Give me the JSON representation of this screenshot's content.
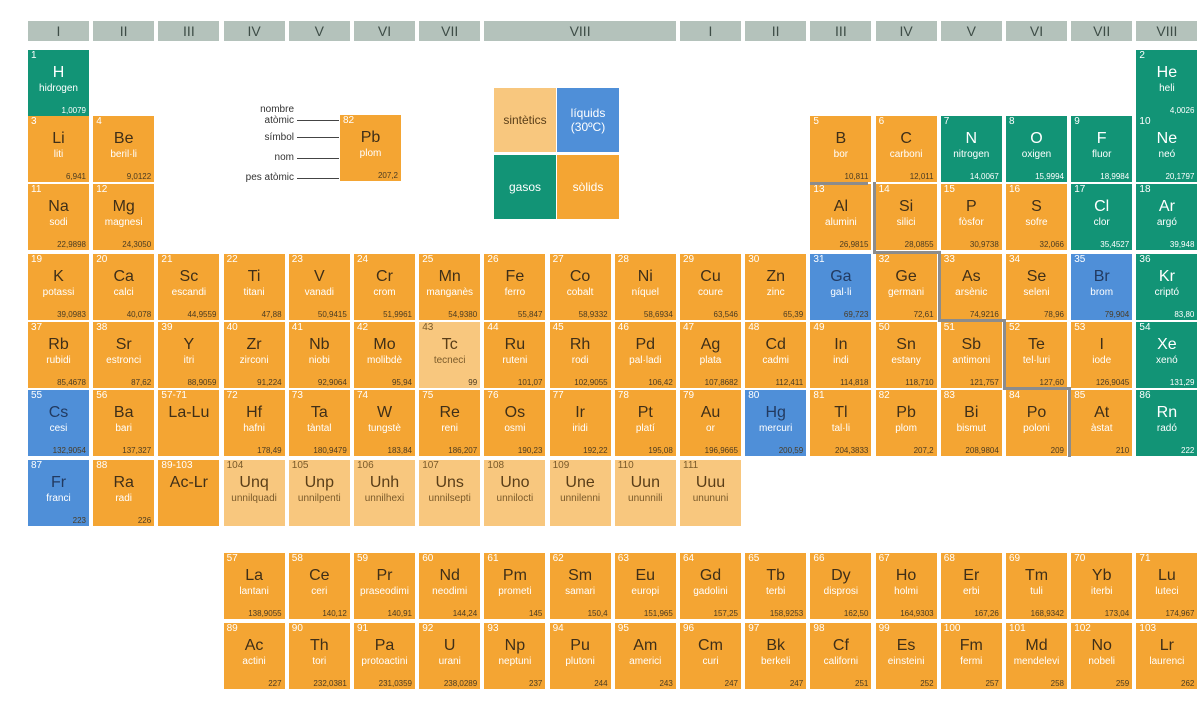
{
  "colors": {
    "solid": "#f4a533",
    "synthetic": "#f8c77e",
    "liquid": "#4f8fd8",
    "gas": "#129476",
    "header": "#b4c2bb"
  },
  "groups": [
    "I",
    "II",
    "III",
    "IV",
    "V",
    "VI",
    "VII",
    "VIII",
    "I",
    "II",
    "III",
    "IV",
    "V",
    "VI",
    "VII",
    "VIII"
  ],
  "legend": {
    "example": {
      "num": "82",
      "sym": "Pb",
      "name": "plom",
      "mass": "207,2"
    },
    "labels": [
      "nombre atòmic",
      "símbol",
      "nom",
      "pes atòmic"
    ],
    "states": [
      {
        "label": "sintètics",
        "color": "#f8c77e"
      },
      {
        "label": "líquids (30ºC)",
        "color": "#4f8fd8"
      },
      {
        "label": "gasos",
        "color": "#129476"
      },
      {
        "label": "sòlids",
        "color": "#f4a533"
      }
    ]
  },
  "elements": [
    {
      "num": "1",
      "sym": "H",
      "name": "hidrogen",
      "mass": "1,0079",
      "row": 1,
      "col": 1,
      "state": "gas"
    },
    {
      "num": "2",
      "sym": "He",
      "name": "heli",
      "mass": "4,0026",
      "row": 1,
      "col": 18,
      "state": "gas"
    },
    {
      "num": "3",
      "sym": "Li",
      "name": "liti",
      "mass": "6,941",
      "row": 2,
      "col": 1,
      "state": "solid"
    },
    {
      "num": "4",
      "sym": "Be",
      "name": "beril·li",
      "mass": "9,0122",
      "row": 2,
      "col": 2,
      "state": "solid"
    },
    {
      "num": "5",
      "sym": "B",
      "name": "bor",
      "mass": "10,811",
      "row": 2,
      "col": 13,
      "state": "solid"
    },
    {
      "num": "6",
      "sym": "C",
      "name": "carboni",
      "mass": "12,011",
      "row": 2,
      "col": 14,
      "state": "solid"
    },
    {
      "num": "7",
      "sym": "N",
      "name": "nitrogen",
      "mass": "14,0067",
      "row": 2,
      "col": 15,
      "state": "gas"
    },
    {
      "num": "8",
      "sym": "O",
      "name": "oxigen",
      "mass": "15,9994",
      "row": 2,
      "col": 16,
      "state": "gas"
    },
    {
      "num": "9",
      "sym": "F",
      "name": "fluor",
      "mass": "18,9984",
      "row": 2,
      "col": 17,
      "state": "gas"
    },
    {
      "num": "10",
      "sym": "Ne",
      "name": "neó",
      "mass": "20,1797",
      "row": 2,
      "col": 18,
      "state": "gas"
    },
    {
      "num": "11",
      "sym": "Na",
      "name": "sodi",
      "mass": "22,9898",
      "row": 3,
      "col": 1,
      "state": "solid"
    },
    {
      "num": "12",
      "sym": "Mg",
      "name": "magnesi",
      "mass": "24,3050",
      "row": 3,
      "col": 2,
      "state": "solid"
    },
    {
      "num": "13",
      "sym": "Al",
      "name": "alumini",
      "mass": "26,9815",
      "row": 3,
      "col": 13,
      "state": "solid"
    },
    {
      "num": "14",
      "sym": "Si",
      "name": "silici",
      "mass": "28,0855",
      "row": 3,
      "col": 14,
      "state": "solid"
    },
    {
      "num": "15",
      "sym": "P",
      "name": "fòsfor",
      "mass": "30,9738",
      "row": 3,
      "col": 15,
      "state": "solid"
    },
    {
      "num": "16",
      "sym": "S",
      "name": "sofre",
      "mass": "32,066",
      "row": 3,
      "col": 16,
      "state": "solid"
    },
    {
      "num": "17",
      "sym": "Cl",
      "name": "clor",
      "mass": "35,4527",
      "row": 3,
      "col": 17,
      "state": "gas"
    },
    {
      "num": "18",
      "sym": "Ar",
      "name": "argó",
      "mass": "39,948",
      "row": 3,
      "col": 18,
      "state": "gas"
    },
    {
      "num": "19",
      "sym": "K",
      "name": "potassi",
      "mass": "39,0983",
      "row": 4,
      "col": 1,
      "state": "solid"
    },
    {
      "num": "20",
      "sym": "Ca",
      "name": "calci",
      "mass": "40,078",
      "row": 4,
      "col": 2,
      "state": "solid"
    },
    {
      "num": "21",
      "sym": "Sc",
      "name": "escandi",
      "mass": "44,9559",
      "row": 4,
      "col": 3,
      "state": "solid"
    },
    {
      "num": "22",
      "sym": "Ti",
      "name": "titani",
      "mass": "47,88",
      "row": 4,
      "col": 4,
      "state": "solid"
    },
    {
      "num": "23",
      "sym": "V",
      "name": "vanadi",
      "mass": "50,9415",
      "row": 4,
      "col": 5,
      "state": "solid"
    },
    {
      "num": "24",
      "sym": "Cr",
      "name": "crom",
      "mass": "51,9961",
      "row": 4,
      "col": 6,
      "state": "solid"
    },
    {
      "num": "25",
      "sym": "Mn",
      "name": "manganès",
      "mass": "54,9380",
      "row": 4,
      "col": 7,
      "state": "solid"
    },
    {
      "num": "26",
      "sym": "Fe",
      "name": "ferro",
      "mass": "55,847",
      "row": 4,
      "col": 8,
      "state": "solid"
    },
    {
      "num": "27",
      "sym": "Co",
      "name": "cobalt",
      "mass": "58,9332",
      "row": 4,
      "col": 9,
      "state": "solid"
    },
    {
      "num": "28",
      "sym": "Ni",
      "name": "níquel",
      "mass": "58,6934",
      "row": 4,
      "col": 10,
      "state": "solid"
    },
    {
      "num": "29",
      "sym": "Cu",
      "name": "coure",
      "mass": "63,546",
      "row": 4,
      "col": 11,
      "state": "solid"
    },
    {
      "num": "30",
      "sym": "Zn",
      "name": "zinc",
      "mass": "65,39",
      "row": 4,
      "col": 12,
      "state": "solid"
    },
    {
      "num": "31",
      "sym": "Ga",
      "name": "gal·li",
      "mass": "69,723",
      "row": 4,
      "col": 13,
      "state": "liquid"
    },
    {
      "num": "32",
      "sym": "Ge",
      "name": "germani",
      "mass": "72,61",
      "row": 4,
      "col": 14,
      "state": "solid"
    },
    {
      "num": "33",
      "sym": "As",
      "name": "arsènic",
      "mass": "74,9216",
      "row": 4,
      "col": 15,
      "state": "solid"
    },
    {
      "num": "34",
      "sym": "Se",
      "name": "seleni",
      "mass": "78,96",
      "row": 4,
      "col": 16,
      "state": "solid"
    },
    {
      "num": "35",
      "sym": "Br",
      "name": "brom",
      "mass": "79,904",
      "row": 4,
      "col": 17,
      "state": "liquid"
    },
    {
      "num": "36",
      "sym": "Kr",
      "name": "criptó",
      "mass": "83,80",
      "row": 4,
      "col": 18,
      "state": "gas"
    },
    {
      "num": "37",
      "sym": "Rb",
      "name": "rubidi",
      "mass": "85,4678",
      "row": 5,
      "col": 1,
      "state": "solid"
    },
    {
      "num": "38",
      "sym": "Sr",
      "name": "estronci",
      "mass": "87,62",
      "row": 5,
      "col": 2,
      "state": "solid"
    },
    {
      "num": "39",
      "sym": "Y",
      "name": "itri",
      "mass": "88,9059",
      "row": 5,
      "col": 3,
      "state": "solid"
    },
    {
      "num": "40",
      "sym": "Zr",
      "name": "zirconi",
      "mass": "91,224",
      "row": 5,
      "col": 4,
      "state": "solid"
    },
    {
      "num": "41",
      "sym": "Nb",
      "name": "niobi",
      "mass": "92,9064",
      "row": 5,
      "col": 5,
      "state": "solid"
    },
    {
      "num": "42",
      "sym": "Mo",
      "name": "molibdè",
      "mass": "95,94",
      "row": 5,
      "col": 6,
      "state": "solid"
    },
    {
      "num": "43",
      "sym": "Tc",
      "name": "tecneci",
      "mass": "99",
      "row": 5,
      "col": 7,
      "state": "synthetic"
    },
    {
      "num": "44",
      "sym": "Ru",
      "name": "ruteni",
      "mass": "101,07",
      "row": 5,
      "col": 8,
      "state": "solid"
    },
    {
      "num": "45",
      "sym": "Rh",
      "name": "rodi",
      "mass": "102,9055",
      "row": 5,
      "col": 9,
      "state": "solid"
    },
    {
      "num": "46",
      "sym": "Pd",
      "name": "pal·ladi",
      "mass": "106,42",
      "row": 5,
      "col": 10,
      "state": "solid"
    },
    {
      "num": "47",
      "sym": "Ag",
      "name": "plata",
      "mass": "107,8682",
      "row": 5,
      "col": 11,
      "state": "solid"
    },
    {
      "num": "48",
      "sym": "Cd",
      "name": "cadmi",
      "mass": "112,411",
      "row": 5,
      "col": 12,
      "state": "solid"
    },
    {
      "num": "49",
      "sym": "In",
      "name": "indi",
      "mass": "114,818",
      "row": 5,
      "col": 13,
      "state": "solid"
    },
    {
      "num": "50",
      "sym": "Sn",
      "name": "estany",
      "mass": "118,710",
      "row": 5,
      "col": 14,
      "state": "solid"
    },
    {
      "num": "51",
      "sym": "Sb",
      "name": "antimoni",
      "mass": "121,757",
      "row": 5,
      "col": 15,
      "state": "solid"
    },
    {
      "num": "52",
      "sym": "Te",
      "name": "tel·luri",
      "mass": "127,60",
      "row": 5,
      "col": 16,
      "state": "solid"
    },
    {
      "num": "53",
      "sym": "I",
      "name": "iode",
      "mass": "126,9045",
      "row": 5,
      "col": 17,
      "state": "solid"
    },
    {
      "num": "54",
      "sym": "Xe",
      "name": "xenó",
      "mass": "131,29",
      "row": 5,
      "col": 18,
      "state": "gas"
    },
    {
      "num": "55",
      "sym": "Cs",
      "name": "cesi",
      "mass": "132,9054",
      "row": 6,
      "col": 1,
      "state": "liquid"
    },
    {
      "num": "56",
      "sym": "Ba",
      "name": "bari",
      "mass": "137,327",
      "row": 6,
      "col": 2,
      "state": "solid"
    },
    {
      "num": "57-71",
      "sym": "La-Lu",
      "name": "",
      "mass": "",
      "row": 6,
      "col": 3,
      "state": "solid"
    },
    {
      "num": "72",
      "sym": "Hf",
      "name": "hafni",
      "mass": "178,49",
      "row": 6,
      "col": 4,
      "state": "solid"
    },
    {
      "num": "73",
      "sym": "Ta",
      "name": "tàntal",
      "mass": "180,9479",
      "row": 6,
      "col": 5,
      "state": "solid"
    },
    {
      "num": "74",
      "sym": "W",
      "name": "tungstè",
      "mass": "183,84",
      "row": 6,
      "col": 6,
      "state": "solid"
    },
    {
      "num": "75",
      "sym": "Re",
      "name": "reni",
      "mass": "186,207",
      "row": 6,
      "col": 7,
      "state": "solid"
    },
    {
      "num": "76",
      "sym": "Os",
      "name": "osmi",
      "mass": "190,23",
      "row": 6,
      "col": 8,
      "state": "solid"
    },
    {
      "num": "77",
      "sym": "Ir",
      "name": "iridi",
      "mass": "192,22",
      "row": 6,
      "col": 9,
      "state": "solid"
    },
    {
      "num": "78",
      "sym": "Pt",
      "name": "platí",
      "mass": "195,08",
      "row": 6,
      "col": 10,
      "state": "solid"
    },
    {
      "num": "79",
      "sym": "Au",
      "name": "or",
      "mass": "196,9665",
      "row": 6,
      "col": 11,
      "state": "solid"
    },
    {
      "num": "80",
      "sym": "Hg",
      "name": "mercuri",
      "mass": "200,59",
      "row": 6,
      "col": 12,
      "state": "liquid"
    },
    {
      "num": "81",
      "sym": "Tl",
      "name": "tal·li",
      "mass": "204,3833",
      "row": 6,
      "col": 13,
      "state": "solid"
    },
    {
      "num": "82",
      "sym": "Pb",
      "name": "plom",
      "mass": "207,2",
      "row": 6,
      "col": 14,
      "state": "solid"
    },
    {
      "num": "83",
      "sym": "Bi",
      "name": "bismut",
      "mass": "208,9804",
      "row": 6,
      "col": 15,
      "state": "solid"
    },
    {
      "num": "84",
      "sym": "Po",
      "name": "poloni",
      "mass": "209",
      "row": 6,
      "col": 16,
      "state": "solid"
    },
    {
      "num": "85",
      "sym": "At",
      "name": "àstat",
      "mass": "210",
      "row": 6,
      "col": 17,
      "state": "solid"
    },
    {
      "num": "86",
      "sym": "Rn",
      "name": "radó",
      "mass": "222",
      "row": 6,
      "col": 18,
      "state": "gas"
    },
    {
      "num": "87",
      "sym": "Fr",
      "name": "franci",
      "mass": "223",
      "row": 7,
      "col": 1,
      "state": "liquid"
    },
    {
      "num": "88",
      "sym": "Ra",
      "name": "radi",
      "mass": "226",
      "row": 7,
      "col": 2,
      "state": "solid"
    },
    {
      "num": "89-103",
      "sym": "Ac-Lr",
      "name": "",
      "mass": "",
      "row": 7,
      "col": 3,
      "state": "solid"
    },
    {
      "num": "104",
      "sym": "Unq",
      "name": "unnilquadi",
      "mass": "",
      "row": 7,
      "col": 4,
      "state": "synthetic"
    },
    {
      "num": "105",
      "sym": "Unp",
      "name": "unnilpenti",
      "mass": "",
      "row": 7,
      "col": 5,
      "state": "synthetic"
    },
    {
      "num": "106",
      "sym": "Unh",
      "name": "unnilhexi",
      "mass": "",
      "row": 7,
      "col": 6,
      "state": "synthetic"
    },
    {
      "num": "107",
      "sym": "Uns",
      "name": "unnilsepti",
      "mass": "",
      "row": 7,
      "col": 7,
      "state": "synthetic"
    },
    {
      "num": "108",
      "sym": "Uno",
      "name": "unnilocti",
      "mass": "",
      "row": 7,
      "col": 8,
      "state": "synthetic"
    },
    {
      "num": "109",
      "sym": "Une",
      "name": "unnilenni",
      "mass": "",
      "row": 7,
      "col": 9,
      "state": "synthetic"
    },
    {
      "num": "110",
      "sym": "Uun",
      "name": "ununnili",
      "mass": "",
      "row": 7,
      "col": 10,
      "state": "synthetic"
    },
    {
      "num": "111",
      "sym": "Uuu",
      "name": "unununi",
      "mass": "",
      "row": 7,
      "col": 11,
      "state": "synthetic"
    },
    {
      "num": "57",
      "sym": "La",
      "name": "lantani",
      "mass": "138,9055",
      "row": 8,
      "col": 4,
      "state": "solid"
    },
    {
      "num": "58",
      "sym": "Ce",
      "name": "ceri",
      "mass": "140,12",
      "row": 8,
      "col": 5,
      "state": "solid"
    },
    {
      "num": "59",
      "sym": "Pr",
      "name": "praseodimi",
      "mass": "140,91",
      "row": 8,
      "col": 6,
      "state": "solid"
    },
    {
      "num": "60",
      "sym": "Nd",
      "name": "neodimi",
      "mass": "144,24",
      "row": 8,
      "col": 7,
      "state": "solid"
    },
    {
      "num": "61",
      "sym": "Pm",
      "name": "prometi",
      "mass": "145",
      "row": 8,
      "col": 8,
      "state": "solid"
    },
    {
      "num": "62",
      "sym": "Sm",
      "name": "samari",
      "mass": "150,4",
      "row": 8,
      "col": 9,
      "state": "solid"
    },
    {
      "num": "63",
      "sym": "Eu",
      "name": "europi",
      "mass": "151,965",
      "row": 8,
      "col": 10,
      "state": "solid"
    },
    {
      "num": "64",
      "sym": "Gd",
      "name": "gadolini",
      "mass": "157,25",
      "row": 8,
      "col": 11,
      "state": "solid"
    },
    {
      "num": "65",
      "sym": "Tb",
      "name": "terbi",
      "mass": "158,9253",
      "row": 8,
      "col": 12,
      "state": "solid"
    },
    {
      "num": "66",
      "sym": "Dy",
      "name": "disprosi",
      "mass": "162,50",
      "row": 8,
      "col": 13,
      "state": "solid"
    },
    {
      "num": "67",
      "sym": "Ho",
      "name": "holmi",
      "mass": "164,9303",
      "row": 8,
      "col": 14,
      "state": "solid"
    },
    {
      "num": "68",
      "sym": "Er",
      "name": "erbi",
      "mass": "167,26",
      "row": 8,
      "col": 15,
      "state": "solid"
    },
    {
      "num": "69",
      "sym": "Tm",
      "name": "tuli",
      "mass": "168,9342",
      "row": 8,
      "col": 16,
      "state": "solid"
    },
    {
      "num": "70",
      "sym": "Yb",
      "name": "iterbi",
      "mass": "173,04",
      "row": 8,
      "col": 17,
      "state": "solid"
    },
    {
      "num": "71",
      "sym": "Lu",
      "name": "luteci",
      "mass": "174,967",
      "row": 8,
      "col": 18,
      "state": "solid"
    },
    {
      "num": "89",
      "sym": "Ac",
      "name": "actini",
      "mass": "227",
      "row": 9,
      "col": 4,
      "state": "solid"
    },
    {
      "num": "90",
      "sym": "Th",
      "name": "tori",
      "mass": "232,0381",
      "row": 9,
      "col": 5,
      "state": "solid"
    },
    {
      "num": "91",
      "sym": "Pa",
      "name": "protoactini",
      "mass": "231,0359",
      "row": 9,
      "col": 6,
      "state": "solid"
    },
    {
      "num": "92",
      "sym": "U",
      "name": "urani",
      "mass": "238,0289",
      "row": 9,
      "col": 7,
      "state": "solid"
    },
    {
      "num": "93",
      "sym": "Np",
      "name": "neptuni",
      "mass": "237",
      "row": 9,
      "col": 8,
      "state": "solid"
    },
    {
      "num": "94",
      "sym": "Pu",
      "name": "plutoni",
      "mass": "244",
      "row": 9,
      "col": 9,
      "state": "solid"
    },
    {
      "num": "95",
      "sym": "Am",
      "name": "americi",
      "mass": "243",
      "row": 9,
      "col": 10,
      "state": "solid"
    },
    {
      "num": "96",
      "sym": "Cm",
      "name": "curi",
      "mass": "247",
      "row": 9,
      "col": 11,
      "state": "solid"
    },
    {
      "num": "97",
      "sym": "Bk",
      "name": "berkeli",
      "mass": "247",
      "row": 9,
      "col": 12,
      "state": "solid"
    },
    {
      "num": "98",
      "sym": "Cf",
      "name": "californi",
      "mass": "251",
      "row": 9,
      "col": 13,
      "state": "solid"
    },
    {
      "num": "99",
      "sym": "Es",
      "name": "einsteini",
      "mass": "252",
      "row": 9,
      "col": 14,
      "state": "solid"
    },
    {
      "num": "100",
      "sym": "Fm",
      "name": "fermi",
      "mass": "257",
      "row": 9,
      "col": 15,
      "state": "solid"
    },
    {
      "num": "101",
      "sym": "Md",
      "name": "mendelevi",
      "mass": "258",
      "row": 9,
      "col": 16,
      "state": "solid"
    },
    {
      "num": "102",
      "sym": "No",
      "name": "nobeli",
      "mass": "259",
      "row": 9,
      "col": 17,
      "state": "solid"
    },
    {
      "num": "103",
      "sym": "Lr",
      "name": "laurenci",
      "mass": "262",
      "row": 9,
      "col": 18,
      "state": "solid"
    }
  ]
}
